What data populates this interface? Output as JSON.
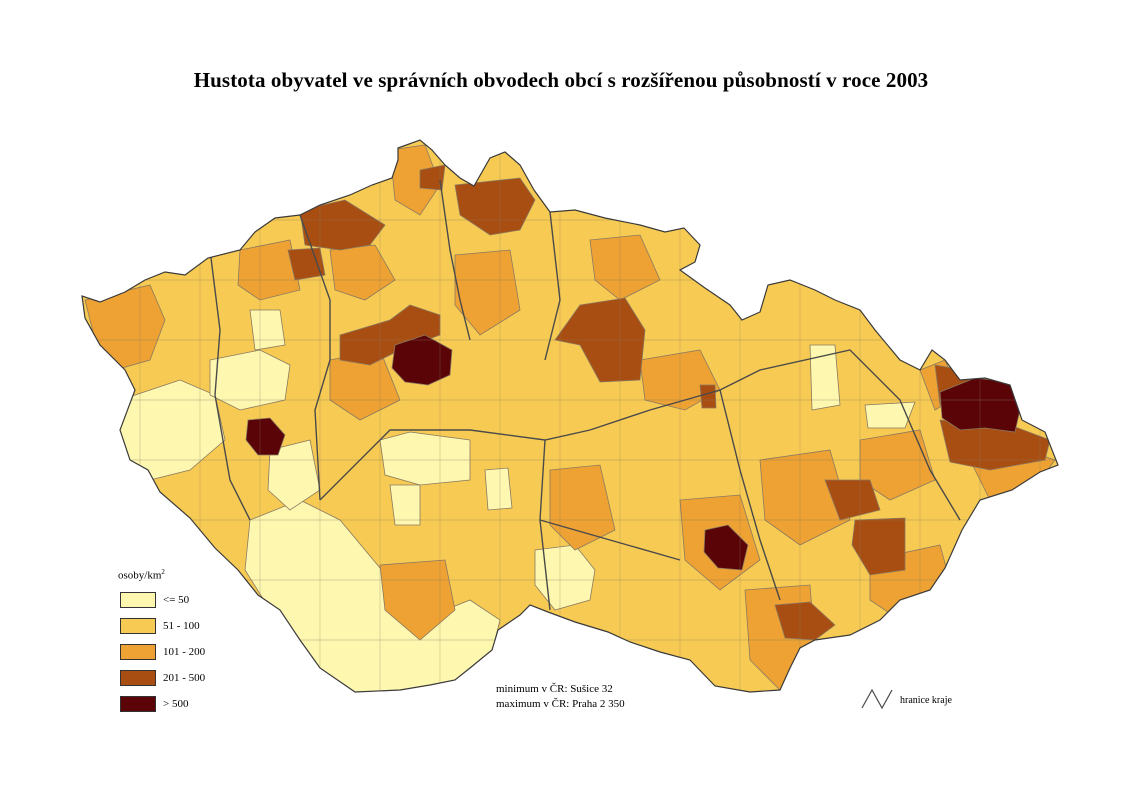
{
  "title": "Hustota obyvatel ve správních obvodech obcí s rozšířenou působností v roce 2003",
  "legend": {
    "title": "osoby/km",
    "title_superscript": "2",
    "classes": [
      {
        "label": "<= 50",
        "color": "#fdf7b0"
      },
      {
        "label": "51 - 100",
        "color": "#f7cb53"
      },
      {
        "label": "101 - 200",
        "color": "#eda233"
      },
      {
        "label": "201 - 500",
        "color": "#a94e12"
      },
      {
        "label": "> 500",
        "color": "#5a0407"
      }
    ]
  },
  "stats": {
    "minimum": "minimum v ČR: Sušice 32",
    "maximum": "maximum v ČR: Praha 2 350"
  },
  "border_key": {
    "label": "hranice kraje",
    "icon": "region-border-zigzag-icon"
  },
  "colors": {
    "district_border": "#8a7a60",
    "region_border": "#4a4a4a",
    "background": "#ffffff"
  }
}
